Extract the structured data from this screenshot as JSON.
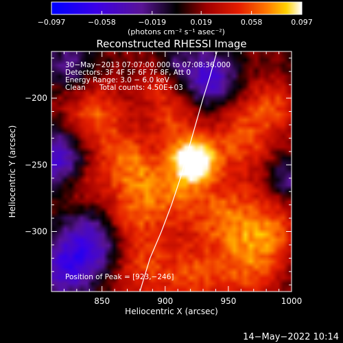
{
  "chart_data": {
    "type": "heatmap",
    "title": "Reconstructed RHESSI Image",
    "xlabel": "Heliocentric X (arcsec)",
    "ylabel": "Heliocentric Y (arcsec)",
    "xlim": [
      810,
      1000
    ],
    "ylim": [
      -345,
      -165
    ],
    "x_ticks": [
      850,
      900,
      950,
      1000
    ],
    "x_tick_labels": [
      "850",
      "900",
      "950",
      "1000"
    ],
    "y_ticks": [
      -200,
      -250,
      -300
    ],
    "y_tick_labels": [
      "−200",
      "−250",
      "−300"
    ],
    "colorbar": {
      "min": -0.097,
      "max": 0.097,
      "ticks": [
        -0.097,
        -0.058,
        -0.019,
        0.019,
        0.058,
        0.097
      ],
      "tick_labels": [
        "−0.097",
        "−0.058",
        "−0.019",
        "0.019",
        "0.058",
        "0.097"
      ],
      "unit_label": "(photons cm⁻² s⁻¹ asec⁻²)"
    },
    "annotations": [
      "30−May−2013 07:07:00.000 to 07:08:36.000",
      "Detectors: 3F 4F 5F 6F 7F 8F, Att 0",
      "Energy Range: 3.0 − 6.0 keV",
      "Clean      Total counts: 4.50E+03"
    ],
    "peak_label": "Position of Peak = [923,−246]",
    "peak": {
      "x": 923,
      "y": -246,
      "value": 0.097
    },
    "limb_curve": {
      "x": [
        880,
        888,
        897,
        905,
        912,
        918,
        924,
        930,
        935,
        941
      ],
      "y": [
        -345,
        -320,
        -300,
        -280,
        -260,
        -240,
        -220,
        -200,
        -185,
        -165
      ]
    },
    "sources": [
      {
        "x": 923,
        "y": -246,
        "value": 0.097,
        "radius": 12
      },
      {
        "x": 845,
        "y": -215,
        "value": 0.05,
        "radius": 18
      },
      {
        "x": 870,
        "y": -250,
        "value": 0.045,
        "radius": 16
      },
      {
        "x": 900,
        "y": -270,
        "value": 0.048,
        "radius": 20
      },
      {
        "x": 905,
        "y": -215,
        "value": 0.04,
        "radius": 14
      },
      {
        "x": 960,
        "y": -230,
        "value": 0.045,
        "radius": 18
      },
      {
        "x": 985,
        "y": -205,
        "value": 0.04,
        "radius": 14
      },
      {
        "x": 950,
        "y": -290,
        "value": 0.05,
        "radius": 22
      },
      {
        "x": 985,
        "y": -300,
        "value": 0.04,
        "radius": 16
      },
      {
        "x": 880,
        "y": -325,
        "value": 0.042,
        "radius": 18
      },
      {
        "x": 920,
        "y": -335,
        "value": 0.04,
        "radius": 16
      },
      {
        "x": 965,
        "y": -330,
        "value": 0.042,
        "radius": 18
      },
      {
        "x": 835,
        "y": -265,
        "value": 0.03,
        "radius": 14
      },
      {
        "x": 870,
        "y": -290,
        "value": 0.035,
        "radius": 14
      },
      {
        "x": 895,
        "y": -185,
        "value": 0.03,
        "radius": 12
      }
    ],
    "negative_regions": [
      {
        "x": 935,
        "y": -185,
        "value": -0.07,
        "radius": 14
      },
      {
        "x": 815,
        "y": -245,
        "value": -0.07,
        "radius": 16
      },
      {
        "x": 840,
        "y": -310,
        "value": -0.07,
        "radius": 18
      },
      {
        "x": 820,
        "y": -330,
        "value": -0.05,
        "radius": 14
      },
      {
        "x": 905,
        "y": -175,
        "value": -0.035,
        "radius": 10
      },
      {
        "x": 995,
        "y": -260,
        "value": -0.04,
        "radius": 10
      },
      {
        "x": 825,
        "y": -175,
        "value": -0.04,
        "radius": 12
      }
    ]
  },
  "footer": {
    "timestamp": "14−May−2022 10:14"
  }
}
